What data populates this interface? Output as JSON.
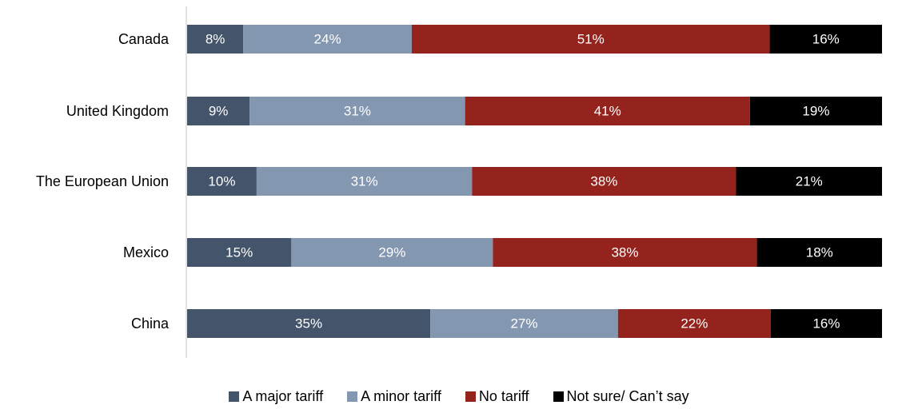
{
  "chart_data": {
    "type": "bar",
    "orientation": "horizontal",
    "stacked": true,
    "categories": [
      "Canada",
      "United Kingdom",
      "The European Union",
      "Mexico",
      "China"
    ],
    "series": [
      {
        "name": "A major tariff",
        "color": "#44546a",
        "values": [
          8,
          9,
          10,
          15,
          35
        ]
      },
      {
        "name": "A minor tariff",
        "color": "#8497b0",
        "values": [
          24,
          31,
          31,
          29,
          27
        ]
      },
      {
        "name": "No tariff",
        "color": "#94231e",
        "values": [
          51,
          41,
          38,
          38,
          22
        ]
      },
      {
        "name": "Not sure/ Can’t say",
        "color": "#000000",
        "values": [
          16,
          19,
          21,
          18,
          16
        ]
      }
    ],
    "value_suffix": "%",
    "xlim": [
      0,
      100
    ],
    "grid": false,
    "legend_position": "bottom"
  }
}
